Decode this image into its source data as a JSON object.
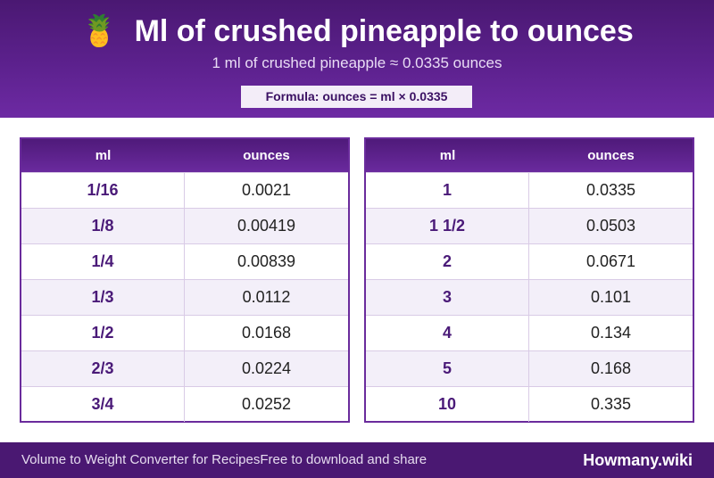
{
  "header": {
    "icon": "pineapple-icon",
    "icon_glyph": "🍍",
    "title": "Ml of crushed pineapple to ounces",
    "subtitle": "1 ml of crushed pineapple ≈ 0.0335 ounces",
    "formula": "Formula: ounces = ml × 0.0335"
  },
  "tables": {
    "left": {
      "columns": [
        "ml",
        "ounces"
      ],
      "rows": [
        {
          "ml": "1/16",
          "ounces": "0.0021"
        },
        {
          "ml": "1/8",
          "ounces": "0.00419"
        },
        {
          "ml": "1/4",
          "ounces": "0.00839"
        },
        {
          "ml": "1/3",
          "ounces": "0.0112"
        },
        {
          "ml": "1/2",
          "ounces": "0.0168"
        },
        {
          "ml": "2/3",
          "ounces": "0.0224"
        },
        {
          "ml": "3/4",
          "ounces": "0.0252"
        }
      ]
    },
    "right": {
      "columns": [
        "ml",
        "ounces"
      ],
      "rows": [
        {
          "ml": "1",
          "ounces": "0.0335"
        },
        {
          "ml": "1 1/2",
          "ounces": "0.0503"
        },
        {
          "ml": "2",
          "ounces": "0.0671"
        },
        {
          "ml": "3",
          "ounces": "0.101"
        },
        {
          "ml": "4",
          "ounces": "0.134"
        },
        {
          "ml": "5",
          "ounces": "0.168"
        },
        {
          "ml": "10",
          "ounces": "0.335"
        }
      ]
    }
  },
  "footer": {
    "left_text": "Volume to Weight Converter for Recipes",
    "middle_text": "Free to download and share",
    "brand": "Howmany.wiki"
  },
  "colors": {
    "primary": "#5e2290",
    "accent_text": "#4a1a78",
    "alt_row": "#f3eff9"
  }
}
